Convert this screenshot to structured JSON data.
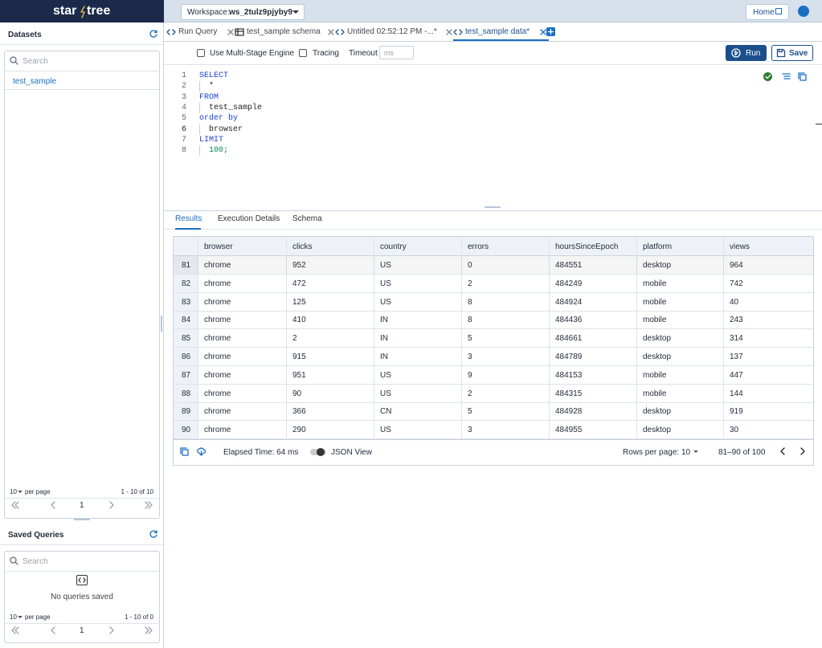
{
  "header": {
    "logo_left": "star",
    "logo_right": "tree",
    "workspace_label": "Workspace:",
    "workspace": "ws_2tulz9pjyby9",
    "home": "Home"
  },
  "sidebar": {
    "datasets": {
      "title": "Datasets",
      "search": "Search",
      "items": [
        "test_sample"
      ],
      "per_page": 10,
      "per_page_label": "per page",
      "range": "1 - 10 of 10",
      "page": 1
    },
    "saved_queries": {
      "title": "Saved Queries",
      "search": "Search",
      "empty": "No queries saved",
      "per_page": 10,
      "per_page_label": "per page",
      "range": "1 - 10 of 0",
      "page": 1
    }
  },
  "tabs": [
    "Run Query",
    "test_sample schema",
    "Untitled 02:52:12 PM -...*",
    "test_sample data*"
  ],
  "toolbar": {
    "multi_stage": "Use Multi-Stage Engine",
    "tracing": "Tracing",
    "timeout": "Timeout",
    "timeout_placeholder": "ms",
    "run": "Run",
    "save": "Save"
  },
  "editor": {
    "line_numbers": [
      1,
      2,
      3,
      4,
      5,
      6,
      7,
      8
    ],
    "lines": [
      "SELECT",
      "  *",
      "FROM",
      "  test_sample",
      "order by",
      "  browser",
      "LIMIT",
      "  100;"
    ]
  },
  "results": {
    "tabs": [
      "Results",
      "Execution Details",
      "Schema"
    ],
    "columns": [
      "browser",
      "clicks",
      "country",
      "errors",
      "hoursSinceEpoch",
      "platform",
      "views"
    ],
    "rows": [
      [
        81,
        "chrome",
        952,
        "US",
        0,
        484551,
        "desktop",
        964
      ],
      [
        82,
        "chrome",
        472,
        "US",
        2,
        484249,
        "mobile",
        742
      ],
      [
        83,
        "chrome",
        125,
        "US",
        8,
        484924,
        "mobile",
        40
      ],
      [
        84,
        "chrome",
        410,
        "IN",
        8,
        484436,
        "mobile",
        243
      ],
      [
        85,
        "chrome",
        2,
        "IN",
        5,
        484661,
        "desktop",
        314
      ],
      [
        86,
        "chrome",
        915,
        "IN",
        3,
        484789,
        "desktop",
        137
      ],
      [
        87,
        "chrome",
        951,
        "US",
        9,
        484153,
        "mobile",
        447
      ],
      [
        88,
        "chrome",
        90,
        "US",
        2,
        484315,
        "mobile",
        144
      ],
      [
        89,
        "chrome",
        366,
        "CN",
        5,
        484928,
        "desktop",
        919
      ],
      [
        90,
        "chrome",
        290,
        "US",
        3,
        484955,
        "desktop",
        30
      ]
    ],
    "elapsed": "Elapsed Time: 64 ms",
    "json_view": "JSON View",
    "rows_per_page_label": "Rows per page:",
    "rows_per_page": 10,
    "range": "81–90 of 100"
  }
}
